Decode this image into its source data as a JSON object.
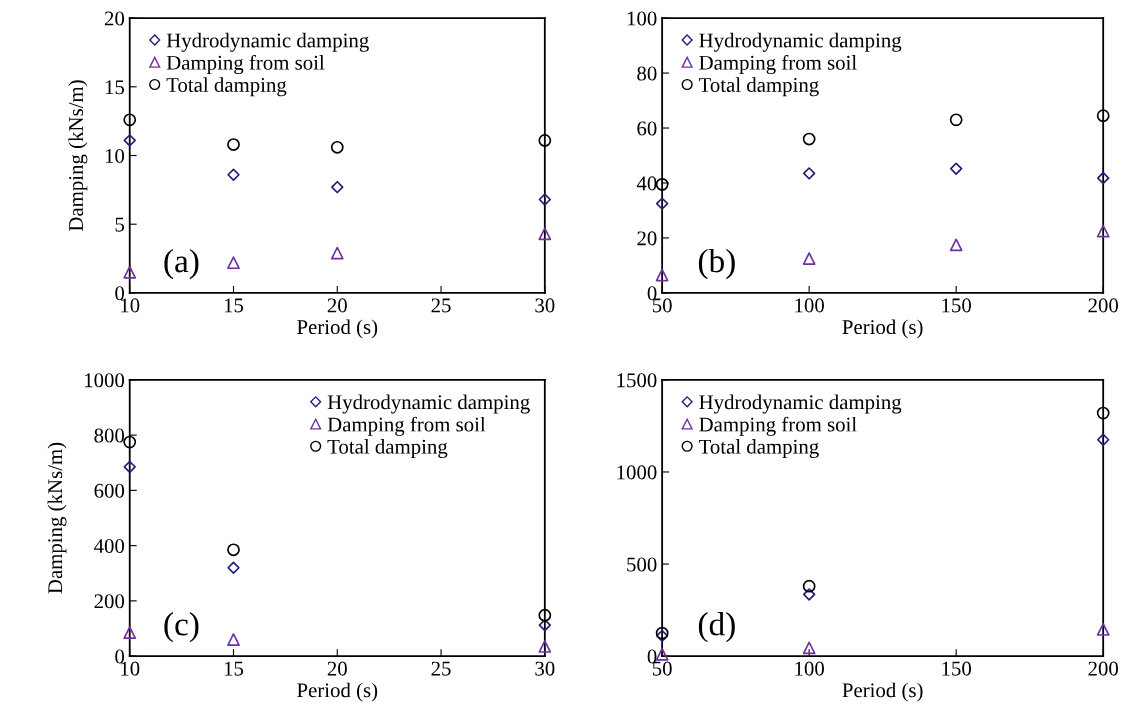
{
  "chart_data": [
    {
      "type": "scatter",
      "x": [
        10,
        15,
        20,
        30
      ],
      "xlabel": "Period (s)",
      "ylabel": "Damping (kNs/m)",
      "xlim": [
        10,
        30
      ],
      "xticks": [
        10,
        15,
        20,
        25,
        30
      ],
      "ylim": [
        0,
        20
      ],
      "yticks": [
        0,
        5,
        10,
        15,
        20
      ],
      "grid": false,
      "legend": "top left",
      "annotations": [
        "(a)"
      ],
      "series": [
        {
          "name": "Hydrodynamic damping",
          "color": "#1f1f7a",
          "marker": "diamond",
          "values": [
            11.1,
            8.6,
            7.7,
            6.8
          ]
        },
        {
          "name": "Damping from soil",
          "color": "#7030a0",
          "marker": "triangle",
          "values": [
            1.5,
            2.2,
            2.9,
            4.3
          ]
        },
        {
          "name": "Total damping",
          "color": "#000000",
          "marker": "circle",
          "values": [
            12.6,
            10.8,
            10.6,
            11.1
          ]
        }
      ]
    },
    {
      "type": "scatter",
      "x": [
        50,
        100,
        150,
        200
      ],
      "xlabel": "Period (s)",
      "xlim": [
        50,
        200
      ],
      "xticks": [
        50,
        100,
        150,
        200
      ],
      "ylim": [
        0,
        100
      ],
      "yticks": [
        0,
        20,
        40,
        60,
        80,
        100
      ],
      "grid": false,
      "legend": "top left",
      "annotations": [
        "(b)"
      ],
      "series": [
        {
          "name": "Hydrodynamic damping",
          "color": "#1f1f7a",
          "marker": "diamond",
          "values": [
            32.5,
            43.5,
            45.2,
            41.8
          ]
        },
        {
          "name": "Damping from soil",
          "color": "#7030a0",
          "marker": "triangle",
          "values": [
            6.5,
            12.5,
            17.5,
            22.5
          ]
        },
        {
          "name": "Total damping",
          "color": "#000000",
          "marker": "circle",
          "values": [
            39.5,
            56,
            63,
            64.5
          ]
        }
      ]
    },
    {
      "type": "scatter",
      "x": [
        10,
        15,
        30
      ],
      "xlabel": "Period (s)",
      "ylabel": "Damping (kNs/m)",
      "xlim": [
        10,
        30
      ],
      "xticks": [
        10,
        15,
        20,
        25,
        30
      ],
      "ylim": [
        0,
        1000
      ],
      "yticks": [
        0,
        200,
        400,
        600,
        800,
        1000
      ],
      "grid": false,
      "legend": "top right",
      "annotations": [
        "(c)"
      ],
      "series": [
        {
          "name": "Hydrodynamic damping",
          "color": "#1f1f7a",
          "marker": "diamond",
          "values": [
            685,
            320,
            112
          ]
        },
        {
          "name": "Damping from soil",
          "color": "#7030a0",
          "marker": "triangle",
          "values": [
            85,
            60,
            35
          ]
        },
        {
          "name": "Total damping",
          "color": "#000000",
          "marker": "circle",
          "values": [
            775,
            385,
            148
          ]
        }
      ]
    },
    {
      "type": "scatter",
      "x": [
        50,
        100,
        200
      ],
      "xlabel": "Period (s)",
      "xlim": [
        50,
        200
      ],
      "xticks": [
        50,
        100,
        150,
        200
      ],
      "ylim": [
        0,
        1500
      ],
      "yticks": [
        0,
        500,
        1000,
        1500
      ],
      "grid": false,
      "legend": "top left",
      "annotations": [
        "(d)"
      ],
      "series": [
        {
          "name": "Hydrodynamic damping",
          "color": "#1f1f7a",
          "marker": "diamond",
          "values": [
            110,
            335,
            1175
          ]
        },
        {
          "name": "Damping from soil",
          "color": "#7030a0",
          "marker": "triangle",
          "values": [
            10,
            45,
            145
          ]
        },
        {
          "name": "Total damping",
          "color": "#000000",
          "marker": "circle",
          "values": [
            125,
            380,
            1320
          ]
        }
      ]
    }
  ]
}
